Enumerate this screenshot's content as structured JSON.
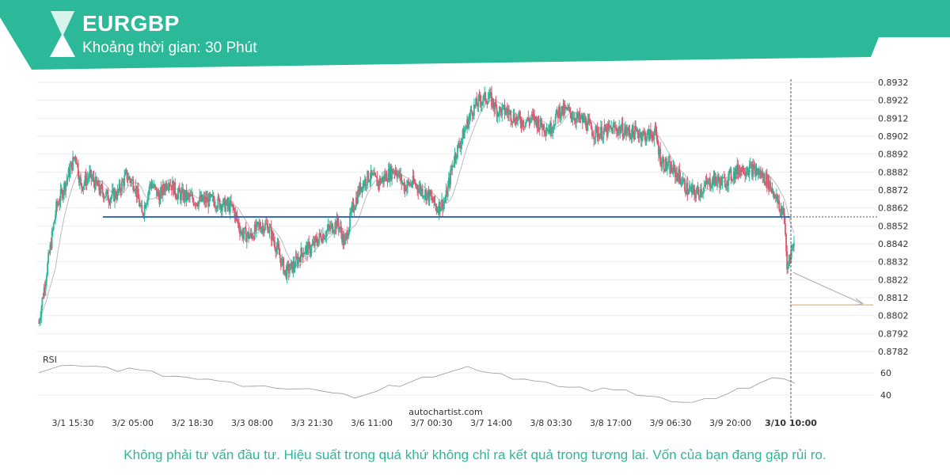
{
  "header": {
    "symbol": "EURGBP",
    "timeframe": "Khoảng thời gian: 30 Phút",
    "brand_color": "#2bb99a"
  },
  "disclaimer": "Không phải tư vấn đầu tư. Hiệu suất trong quá khứ không chỉ ra kết quả trong tương lai. Vốn của bạn đang gặp rủi ro.",
  "watermark": "autochartist.com",
  "chart_data": {
    "type": "candlestick",
    "ylim": [
      0.8782,
      0.8932
    ],
    "y_ticks": [
      "0.8932",
      "0.8922",
      "0.8912",
      "0.8902",
      "0.8892",
      "0.8882",
      "0.8872",
      "0.8862",
      "0.8852",
      "0.8842",
      "0.8832",
      "0.8822",
      "0.8812",
      "0.8802",
      "0.8792",
      "0.8782"
    ],
    "x_ticks": [
      "3/1 15:30",
      "3/2 05:00",
      "3/2 18:30",
      "3/3 08:00",
      "3/3 21:30",
      "3/6 11:00",
      "3/7 00:30",
      "3/7 14:00",
      "3/8 03:30",
      "3/8 17:00",
      "3/9 06:30",
      "3/9 20:00",
      "3/10 10:00"
    ],
    "current_time_label": "3/10 10:00",
    "support_level": 0.8857,
    "target_level": 0.8808,
    "colors": {
      "up": "#2bb99a",
      "down": "#e0566e",
      "support": "#3b6cc4",
      "target": "#e8a052",
      "ma": "#bbbbbb"
    },
    "price_path": [
      [
        0,
        0.8798
      ],
      [
        10,
        0.883
      ],
      [
        20,
        0.8862
      ],
      [
        32,
        0.8878
      ],
      [
        42,
        0.8892
      ],
      [
        48,
        0.8874
      ],
      [
        58,
        0.888
      ],
      [
        70,
        0.8872
      ],
      [
        80,
        0.8868
      ],
      [
        90,
        0.887
      ],
      [
        100,
        0.888
      ],
      [
        110,
        0.8875
      ],
      [
        118,
        0.8858
      ],
      [
        128,
        0.8876
      ],
      [
        138,
        0.8868
      ],
      [
        148,
        0.8878
      ],
      [
        158,
        0.887
      ],
      [
        170,
        0.8868
      ],
      [
        180,
        0.8866
      ],
      [
        190,
        0.8866
      ],
      [
        200,
        0.8866
      ],
      [
        210,
        0.8864
      ],
      [
        222,
        0.8862
      ],
      [
        232,
        0.8848
      ],
      [
        242,
        0.8846
      ],
      [
        252,
        0.8852
      ],
      [
        262,
        0.8852
      ],
      [
        272,
        0.884
      ],
      [
        282,
        0.8826
      ],
      [
        292,
        0.883
      ],
      [
        302,
        0.8838
      ],
      [
        312,
        0.884
      ],
      [
        322,
        0.8846
      ],
      [
        332,
        0.885
      ],
      [
        342,
        0.8854
      ],
      [
        350,
        0.8842
      ],
      [
        358,
        0.886
      ],
      [
        368,
        0.8874
      ],
      [
        378,
        0.888
      ],
      [
        388,
        0.8876
      ],
      [
        398,
        0.888
      ],
      [
        408,
        0.8884
      ],
      [
        418,
        0.8874
      ],
      [
        428,
        0.8876
      ],
      [
        438,
        0.8872
      ],
      [
        448,
        0.8868
      ],
      [
        455,
        0.8862
      ],
      [
        465,
        0.8866
      ],
      [
        475,
        0.889
      ],
      [
        485,
        0.8902
      ],
      [
        495,
        0.8916
      ],
      [
        505,
        0.8922
      ],
      [
        515,
        0.8924
      ],
      [
        525,
        0.8916
      ],
      [
        535,
        0.8916
      ],
      [
        545,
        0.8912
      ],
      [
        555,
        0.891
      ],
      [
        565,
        0.8912
      ],
      [
        575,
        0.8908
      ],
      [
        585,
        0.8906
      ],
      [
        595,
        0.8916
      ],
      [
        605,
        0.8916
      ],
      [
        615,
        0.8912
      ],
      [
        625,
        0.891
      ],
      [
        635,
        0.8904
      ],
      [
        645,
        0.8904
      ],
      [
        655,
        0.8906
      ],
      [
        665,
        0.8906
      ],
      [
        675,
        0.8904
      ],
      [
        685,
        0.8904
      ],
      [
        695,
        0.8902
      ],
      [
        705,
        0.8904
      ],
      [
        712,
        0.8888
      ],
      [
        722,
        0.8884
      ],
      [
        732,
        0.888
      ],
      [
        742,
        0.8872
      ],
      [
        752,
        0.887
      ],
      [
        762,
        0.8874
      ],
      [
        772,
        0.8878
      ],
      [
        782,
        0.8876
      ],
      [
        792,
        0.888
      ],
      [
        802,
        0.8884
      ],
      [
        812,
        0.8884
      ],
      [
        822,
        0.8882
      ],
      [
        832,
        0.8878
      ],
      [
        842,
        0.887
      ],
      [
        848,
        0.886
      ],
      [
        852,
        0.8862
      ],
      [
        856,
        0.8828
      ],
      [
        860,
        0.8838
      ],
      [
        864,
        0.8842
      ]
    ],
    "rsi": {
      "label": "RSI",
      "ticks": [
        "60",
        "40"
      ],
      "values": [
        62,
        64,
        66,
        65,
        67,
        66,
        64,
        63,
        65,
        62,
        60,
        58,
        57,
        55,
        56,
        55,
        52,
        50,
        49,
        48,
        47,
        48,
        46,
        45,
        44,
        45,
        42,
        40,
        39,
        41,
        43,
        47,
        49,
        52,
        55,
        58,
        60,
        62,
        64,
        63,
        60,
        58,
        56,
        55,
        52,
        50,
        49,
        47,
        46,
        45,
        47,
        44,
        43,
        41,
        39,
        37,
        36,
        34,
        33,
        35,
        38,
        41,
        45,
        48,
        52,
        55,
        53,
        52
      ]
    }
  }
}
